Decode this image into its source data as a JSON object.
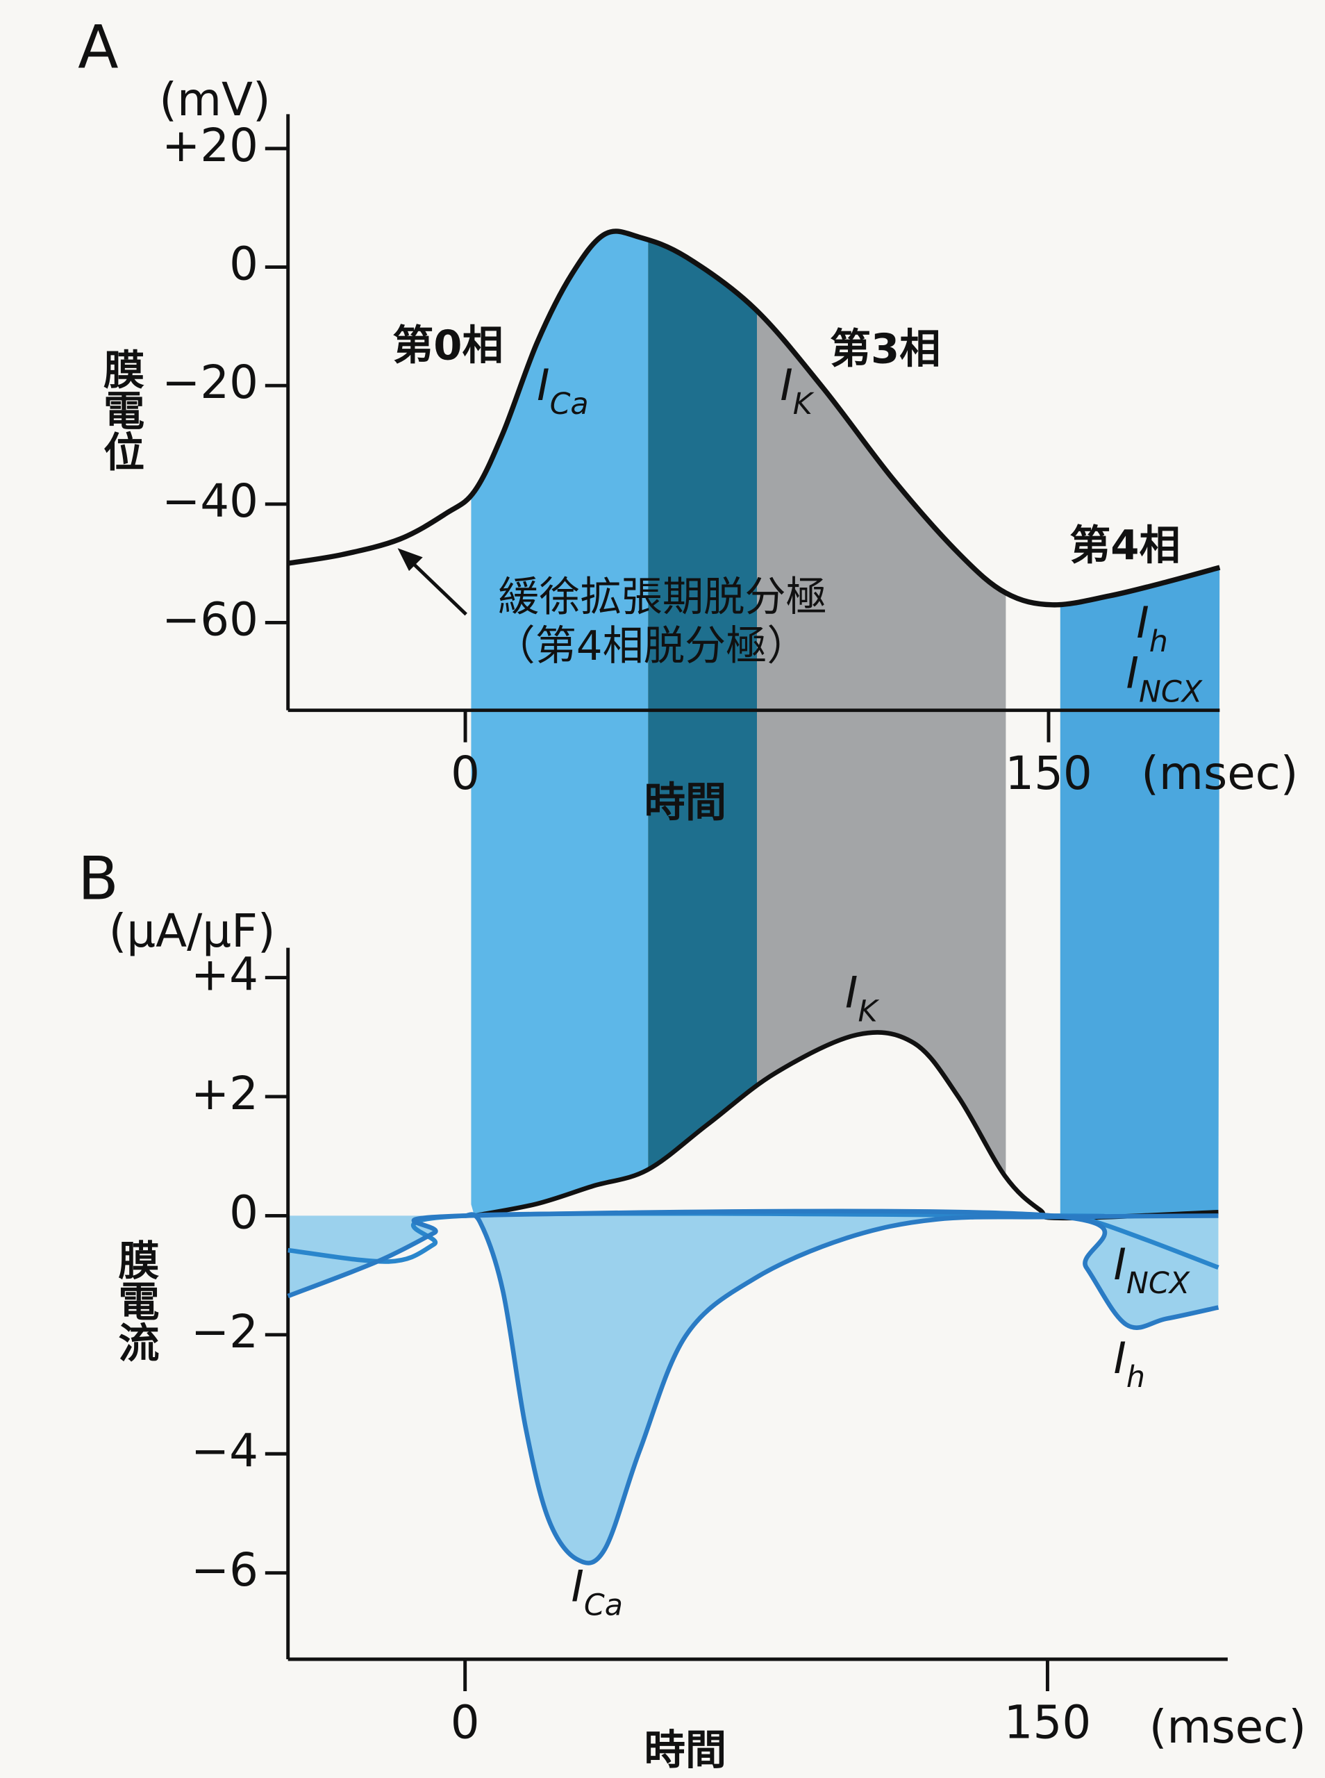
{
  "chart_data": [
    {
      "type": "line",
      "panel": "A",
      "y_unit": "(mV)",
      "ylabel": "膜電位",
      "xlabel": "時間",
      "x_unit": "(msec)",
      "xlim": [
        -45.6,
        194
      ],
      "ylim": [
        -74.8,
        25.8
      ],
      "xticks": [
        0,
        150
      ],
      "yticks": [
        {
          "value": 20,
          "label": "+20"
        },
        0,
        {
          "value": -20,
          "label": "−20"
        },
        {
          "value": -40,
          "label": "−40"
        },
        {
          "value": -60,
          "label": "−60"
        }
      ],
      "x": [
        -45.6,
        -31.5,
        -16.8,
        -5,
        2.4,
        9.7,
        18.5,
        27.4,
        36,
        45,
        56.8,
        74.4,
        92,
        110,
        127,
        139,
        151,
        165.6,
        180,
        194
      ],
      "values": [
        -50,
        -48.5,
        -45.9,
        -41.6,
        -37.8,
        -28,
        -12.7,
        -1.2,
        5.6,
        5,
        1.7,
        -7,
        -20.4,
        -35.8,
        -48.4,
        -55,
        -57,
        -55.5,
        -53.2,
        -50.7
      ],
      "color": "#111111",
      "shaded_regions": [
        {
          "x0": 1.5,
          "x1": 47,
          "color": "#5db7e8"
        },
        {
          "x0": 47,
          "x1": 75,
          "color": "#1e6f8e"
        },
        {
          "x0": 75,
          "x1": 139,
          "color": "#a3a5a7"
        },
        {
          "x0": 153,
          "x1": 194,
          "color": "#4ba7de"
        }
      ],
      "phase_labels": [
        "第0相",
        "第3相",
        "第4相"
      ],
      "note": [
        "緩徐拡張期脱分極",
        "（第4相脱分極）"
      ],
      "ion_labels": [
        {
          "text": "I",
          "sub": "Ca"
        },
        {
          "text": "I",
          "sub": "K"
        },
        {
          "text": "I",
          "sub": "h"
        },
        {
          "text": "I",
          "sub": "NCX"
        }
      ]
    },
    {
      "type": "line",
      "panel": "B",
      "y_unit": "(μA/μF)",
      "ylabel": "膜電流",
      "xlabel": "時間",
      "x_unit": "(msec)",
      "xlim": [
        -45.6,
        196.4
      ],
      "ylim": [
        -7.45,
        4.5
      ],
      "xticks": [
        0,
        150
      ],
      "yticks": [
        {
          "value": 4,
          "label": "+4"
        },
        {
          "value": 2,
          "label": "+2"
        },
        0,
        {
          "value": -2,
          "label": "−2"
        },
        {
          "value": -4,
          "label": "−4"
        },
        {
          "value": -6,
          "label": "−6"
        }
      ],
      "series": [
        {
          "name": "I",
          "sub": "K",
          "color": "#111111",
          "x": [
            2.4,
            18.5,
            33,
            47,
            62.6,
            80,
            101,
            115.6,
            127,
            139,
            148,
            154,
            194
          ],
          "values": [
            0,
            0.2,
            0.5,
            0.77,
            1.54,
            2.4,
            3.04,
            2.9,
            2.0,
            0.67,
            0.1,
            -0.04,
            0.06
          ]
        },
        {
          "name": "I",
          "sub": "NCX",
          "color": "#2a86cc",
          "x": [
            -45.6,
            -19.7,
            -8,
            0,
            151,
            160,
            174.4,
            194
          ],
          "values": [
            -0.58,
            -0.77,
            -0.48,
            0,
            0,
            -0.06,
            -0.38,
            -0.87
          ]
        },
        {
          "name": "I",
          "sub": "h",
          "color": "#2a7bc4",
          "fill_color": "#5db7e8",
          "x": [
            -45.6,
            -22.6,
            -8,
            0,
            151,
            160,
            170.3,
            180.6,
            194
          ],
          "values": [
            -1.35,
            -0.77,
            -0.29,
            0,
            0,
            -0.87,
            -1.83,
            -1.73,
            -1.54
          ]
        },
        {
          "name": "I",
          "sub": "Ca",
          "color": "#2a7bc4",
          "fill_color": "#5db7e8",
          "x": [
            0,
            3.8,
            9.7,
            15.6,
            21.5,
            28.8,
            36,
            45,
            56.8,
            74.4,
            98,
            121.5,
            151,
            194
          ],
          "values": [
            0,
            -0.1,
            -1.25,
            -3.56,
            -5.1,
            -5.77,
            -5.6,
            -3.94,
            -2.02,
            -1.06,
            -0.38,
            -0.06,
            -0.02,
            0
          ]
        }
      ]
    }
  ]
}
